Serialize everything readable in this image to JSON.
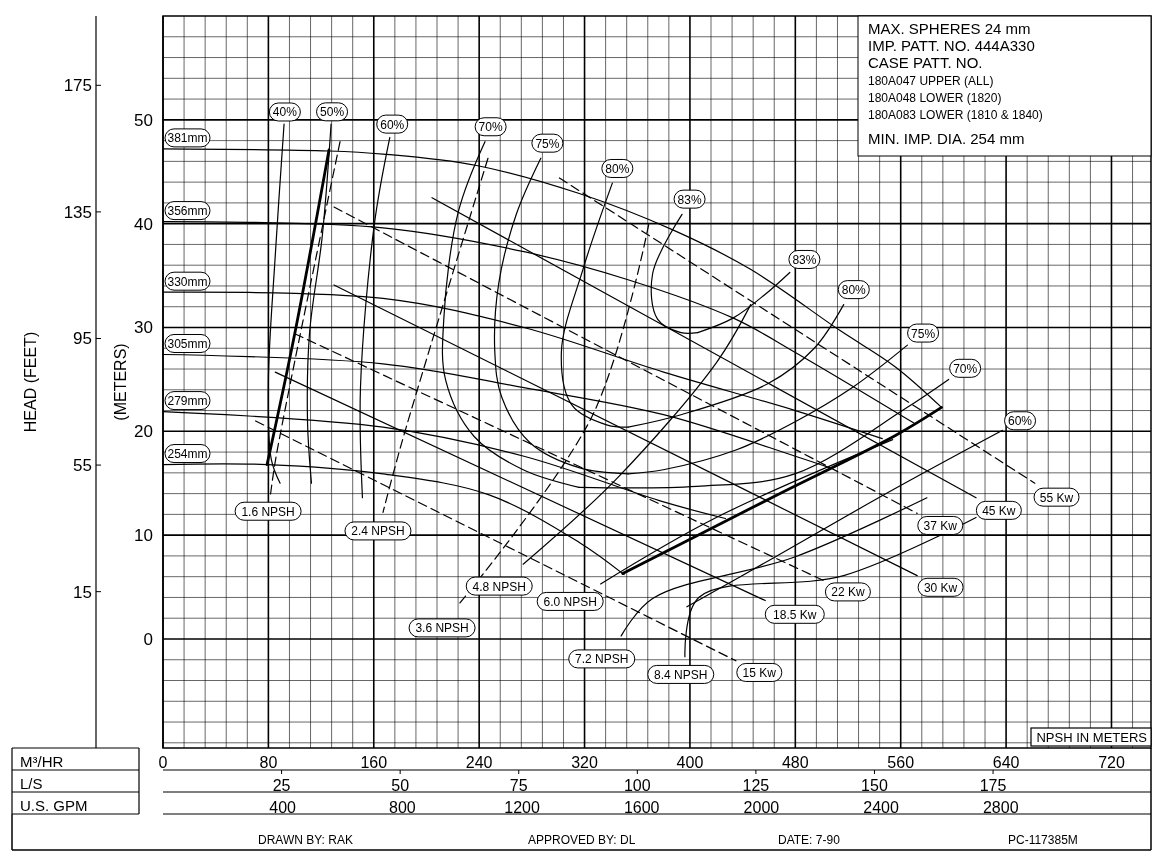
{
  "chart_data": {
    "type": "line",
    "xlabel": "M³/HR",
    "x2label": "L/S",
    "ylabel": "(METERS)",
    "y2label": "HEAD (FEET)",
    "grid": true,
    "xlim": [
      0,
      750
    ],
    "ylim": [
      -10.5,
      60
    ],
    "y2lim": [
      -34.4,
      196.9
    ],
    "x2lim": [
      0,
      208.3
    ],
    "xticks": [
      0,
      {
        "value": 16,
        "label": null
      },
      {
        "value": 32,
        "label": null
      },
      {
        "value": 48,
        "label": null
      },
      {
        "value": 64,
        "label": null
      },
      80,
      {
        "value": 96,
        "label": null
      },
      {
        "value": 112,
        "label": null
      },
      {
        "value": 128,
        "label": null
      },
      {
        "value": 144,
        "label": null
      },
      160,
      {
        "value": 176,
        "label": null
      },
      {
        "value": 192,
        "label": null
      },
      {
        "value": 208,
        "label": null
      },
      {
        "value": 224,
        "label": null
      },
      240,
      {
        "value": 256,
        "label": null
      },
      {
        "value": 272,
        "label": null
      },
      {
        "value": 288,
        "label": null
      },
      {
        "value": 304,
        "label": null
      },
      320,
      {
        "value": 336,
        "label": null
      },
      {
        "value": 352,
        "label": null
      },
      {
        "value": 368,
        "label": null
      },
      {
        "value": 384,
        "label": null
      },
      400,
      {
        "value": 416,
        "label": null
      },
      {
        "value": 432,
        "label": null
      },
      {
        "value": 448,
        "label": null
      },
      {
        "value": 464,
        "label": null
      },
      480,
      {
        "value": 496,
        "label": null
      },
      {
        "value": 512,
        "label": null
      },
      {
        "value": 528,
        "label": null
      },
      {
        "value": 544,
        "label": null
      },
      560,
      {
        "value": 576,
        "label": null
      },
      {
        "value": 592,
        "label": null
      },
      {
        "value": 608,
        "label": null
      },
      {
        "value": 624,
        "label": null
      },
      640,
      {
        "value": 656,
        "label": null
      },
      {
        "value": 672,
        "label": null
      },
      {
        "value": 688,
        "label": null
      },
      {
        "value": 704,
        "label": null
      },
      720,
      {
        "value": 736,
        "label": null
      }
    ],
    "yticks": [
      {
        "value": -10,
        "label": null
      },
      {
        "value": -8,
        "label": null
      },
      {
        "value": -6,
        "label": null
      },
      {
        "value": -4,
        "label": null
      },
      {
        "value": -2,
        "label": null
      },
      0,
      {
        "value": 2,
        "label": null
      },
      {
        "value": 4,
        "label": null
      },
      {
        "value": 6,
        "label": null
      },
      {
        "value": 8,
        "label": null
      },
      10,
      {
        "value": 12,
        "label": null
      },
      {
        "value": 14,
        "label": null
      },
      {
        "value": 16,
        "label": null
      },
      {
        "value": 18,
        "label": null
      },
      20,
      {
        "value": 22,
        "label": null
      },
      {
        "value": 24,
        "label": null
      },
      {
        "value": 26,
        "label": null
      },
      {
        "value": 28,
        "label": null
      },
      30,
      {
        "value": 32,
        "label": null
      },
      {
        "value": 34,
        "label": null
      },
      {
        "value": 36,
        "label": null
      },
      {
        "value": 38,
        "label": null
      },
      40,
      {
        "value": 42,
        "label": null
      },
      {
        "value": 44,
        "label": null
      },
      {
        "value": 46,
        "label": null
      },
      {
        "value": 48,
        "label": null
      },
      50,
      {
        "value": 52,
        "label": null
      },
      {
        "value": 54,
        "label": null
      },
      {
        "value": 56,
        "label": null
      },
      {
        "value": 58,
        "label": null
      }
    ],
    "y2ticks": [
      15,
      55,
      95,
      135,
      175
    ],
    "x2ticks": [
      25,
      50,
      75,
      100,
      125,
      150,
      175
    ],
    "annotations": [
      "MAX. SPHERES 24 mm",
      "IMP. PATT. NO. 444A330",
      "CASE PATT. NO.",
      "180A047 UPPER (ALL)",
      "180A048 LOWER (1820)",
      "180A083 LOWER (1810 & 1840)",
      "MIN. IMP. DIA. 254 mm",
      "DRAWN BY: RAK",
      "APPROVED BY: DL",
      "DATE: 7-90",
      "PC-117385M",
      "NPSH IN METERS",
      "U.S. GPM",
      "400",
      "800",
      "1200",
      "1600",
      "2000",
      "2400",
      "2800"
    ],
    "series": [
      {
        "name": "381mm",
        "color": "#000000",
        "x": [
          591,
          556,
          514,
          446,
          387,
          316,
          238,
          167,
          126,
          0
        ],
        "values": [
          22.3,
          26.2,
          29.7,
          35.6,
          39.4,
          42.9,
          45.6,
          46.7,
          47.0,
          47.2
        ]
      },
      {
        "name": "356mm",
        "color": "#000000",
        "x": [
          570,
          480,
          433,
          353,
          274,
          167,
          0
        ],
        "values": [
          20.8,
          27.6,
          30.9,
          34.6,
          37.3,
          39.6,
          40.2
        ]
      },
      {
        "name": "330mm",
        "color": "#000000",
        "x": [
          546,
          480,
          380,
          274,
          167,
          0
        ],
        "values": [
          19.3,
          22.0,
          25.7,
          30.0,
          32.8,
          33.4
        ]
      },
      {
        "name": "305mm",
        "color": "#000000",
        "x": [
          506,
          480,
          380,
          274,
          167,
          0
        ],
        "values": [
          16.5,
          17.6,
          21.6,
          24.2,
          26.5,
          27.4
        ]
      },
      {
        "name": "279mm",
        "color": "#000000",
        "x": [
          427,
          380,
          274,
          167,
          0
        ],
        "values": [
          11.6,
          13.2,
          17.6,
          20.4,
          21.9
        ]
      },
      {
        "name": "254mm",
        "color": "#000000",
        "x": [
          350,
          316,
          247,
          167,
          79,
          0
        ],
        "values": [
          6.2,
          9.3,
          13.9,
          15.9,
          16.8,
          16.8
        ]
      },
      {
        "color": "#000000",
        "x": [
          349,
          465,
          556,
          591
        ],
        "values": [
          6.3,
          13.8,
          19.6,
          22.3
        ]
      },
      {
        "color": "#000000",
        "x": [
          79,
          100,
          126
        ],
        "values": [
          16.8,
          29.4,
          47.1
        ]
      },
      {
        "name": "40%",
        "color": "#000000",
        "x": [
          88.9,
          82.2,
          80.0,
          85.2,
          91.9
        ],
        "values": [
          15.0,
          17.3,
          24.8,
          36.9,
          49.6
        ]
      },
      {
        "name": "50%",
        "color": "#000000",
        "x": [
          112.7,
          109.7,
          111.2,
          120.9,
          127.6
        ],
        "values": [
          15.0,
          21.0,
          29.4,
          38.8,
          49.6
        ]
      },
      {
        "name": "60%",
        "color": "#000000",
        "x": [
          151.4,
          149.9,
          160.4,
          172.2
        ],
        "values": [
          13.6,
          24.2,
          39.9,
          48.3
        ]
      },
      {
        "name": "60%",
        "color": "#000000",
        "x": [
          397.7,
          464.7,
          551.7,
          637.3
        ],
        "values": [
          3.1,
          7.9,
          14.2,
          20.1
        ]
      },
      {
        "name": "70%",
        "color": "#000000",
        "x": [
          315.8,
          273.4,
          236.2,
          214.6,
          213.2,
          224.3,
          244.4
        ],
        "values": [
          14.6,
          16.3,
          19.5,
          24.9,
          30.9,
          41.2,
          47.9
        ]
      },
      {
        "name": "70%",
        "color": "#000000",
        "x": [
          315.8,
          405.1,
          479.5,
          563.6,
          596.4
        ],
        "values": [
          14.6,
          14.7,
          15.9,
          22.2,
          25.0
        ]
      },
      {
        "name": "75%",
        "color": "#000000",
        "x": [
          353.1,
          315.8,
          278.6,
          257.1,
          251.9,
          254.8,
          268.2,
          286.8
        ],
        "values": [
          15.9,
          16.5,
          18.9,
          23.3,
          27.6,
          34.2,
          40.9,
          46.3
        ]
      },
      {
        "name": "75%",
        "color": "#000000",
        "x": [
          353.1,
          379.8,
          434.9,
          479.5,
          524.2,
          565.1
        ],
        "values": [
          15.9,
          16.3,
          18.2,
          20.9,
          24.3,
          28.3
        ]
      },
      {
        "name": "80%",
        "color": "#000000",
        "x": [
          353.1,
          337.4,
          310.6,
          302.4,
          318.8,
          341.1
        ],
        "values": [
          20.4,
          20.6,
          22.5,
          27.6,
          35.6,
          43.9
        ]
      },
      {
        "name": "80%",
        "color": "#000000",
        "x": [
          353.1,
          393.2,
          459.4,
          494.4,
          516.7
        ],
        "values": [
          20.4,
          21.6,
          24.6,
          28.0,
          32.2
        ]
      },
      {
        "name": "83%",
        "color": "#000000",
        "x": [
          405.9,
          393.2,
          375.4,
          371.7,
          394.0
        ],
        "values": [
          29.5,
          29.5,
          30.8,
          35.2,
          40.9
        ]
      },
      {
        "name": "83%",
        "color": "#000000",
        "x": [
          405.9,
          432.7,
          457.2,
          475.8
        ],
        "values": [
          29.5,
          30.9,
          33.2,
          35.3
        ]
      },
      {
        "name": "55 Kw",
        "color": "#000000",
        "line_style": "dashed",
        "x": [
          300.9,
          661.8
        ],
        "values": [
          44.4,
          15.0
        ]
      },
      {
        "name": "45 Kw",
        "color": "#000000",
        "x": [
          204.2,
          617.2
        ],
        "values": [
          42.5,
          13.6
        ]
      },
      {
        "name": "37 Kw",
        "color": "#000000",
        "line_style": "dashed",
        "x": [
          129.8,
          572.5
        ],
        "values": [
          41.6,
          12.1
        ]
      },
      {
        "name": "30 Kw",
        "color": "#000000",
        "x": [
          129.8,
          572.5
        ],
        "values": [
          34.1,
          6.1
        ]
      },
      {
        "name": "22 Kw",
        "color": "#000000",
        "line_style": "dashed",
        "x": [
          100.0,
          501.9
        ],
        "values": [
          29.4,
          5.6
        ]
      },
      {
        "name": "18.5 Kw",
        "color": "#000000",
        "x": [
          85.2,
          457.2
        ],
        "values": [
          25.7,
          3.7
        ]
      },
      {
        "name": "15 Kw",
        "color": "#000000",
        "line_style": "dashed",
        "x": [
          70.3,
          434.9
        ],
        "values": [
          21.0,
          -2.1
        ]
      },
      {
        "name": "1.6 NPSH",
        "color": "#000000",
        "line_style": "dashed",
        "x": [
          134.4,
          85.9,
          81.5
        ],
        "values": [
          47.9,
          17.6,
          13.8
        ]
      },
      {
        "name": "2.4 NPSH",
        "color": "#000000",
        "line_style": "dashed",
        "x": [
          246.7,
          181.9,
          167.0
        ],
        "values": [
          46.3,
          19.2,
          12.2
        ]
      },
      {
        "name": "3.6 NPSH",
        "color": "#000000",
        "line_style": "dashed",
        "x": [
          368.7,
          326.3,
          224.3
        ],
        "values": [
          39.9,
          21.6,
          3.3
        ]
      },
      {
        "name": "4.8 NPSH",
        "color": "#000000",
        "x": [
          446.1,
          420.0,
          344.1,
          273.4
        ],
        "values": [
          32.2,
          26.6,
          15.4,
          7.2
        ]
      },
      {
        "name": "6.0 NPSH",
        "color": "#000000",
        "x": [
          553.9,
          420.0,
          332.2
        ],
        "values": [
          19.2,
          11.7,
          5.3
        ]
      },
      {
        "name": "7.2 NPSH",
        "color": "#000000",
        "x": [
          579.9,
          479.5,
          371.7,
          347.8
        ],
        "values": [
          13.6,
          7.9,
          3.9,
          0.3
        ]
      },
      {
        "name": "8.4 NPSH",
        "color": "#000000",
        "x": [
          617.2,
          516.7,
          406.7,
          396.2
        ],
        "values": [
          11.7,
          6.1,
          4.0,
          -1.7
        ]
      }
    ]
  }
}
